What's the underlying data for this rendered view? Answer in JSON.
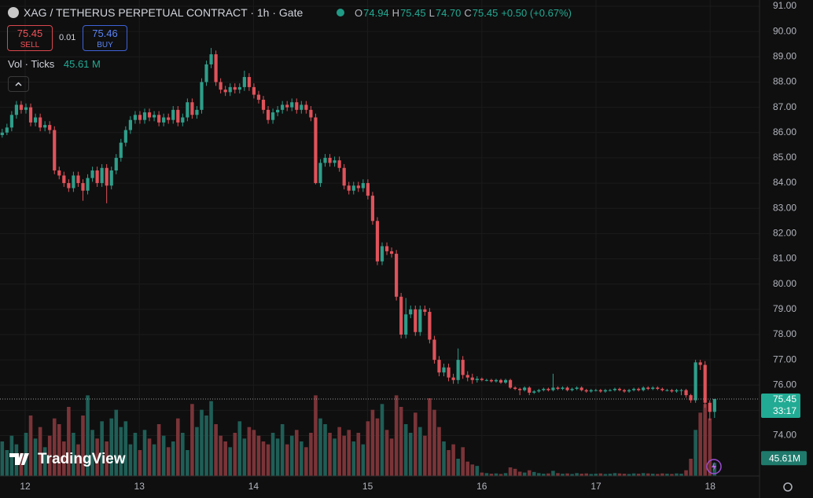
{
  "chart_data": {
    "type": "candlestick",
    "title": "XAG / TETHERUS PERPETUAL CONTRACT · 1h · Gate",
    "legend_keys": [
      "O",
      "H",
      "L",
      "C"
    ],
    "legend_values": [
      74.94,
      75.45,
      74.7,
      75.45
    ],
    "legend_value_labels": [
      "74.94",
      "75.45",
      "74.70",
      "75.45"
    ],
    "change": "+0.50 (+0.67%)",
    "sell": {
      "price": 75.45,
      "label": "SELL"
    },
    "spread": 0.01,
    "buy": {
      "price": 75.46,
      "label": "BUY"
    },
    "volume_title": "Vol · Ticks",
    "volume_legend": "45.61 M",
    "volume_tag": "45.61M",
    "countdown": "33:17",
    "watermark": "TradingView",
    "x_labels": [
      "12",
      "13",
      "14",
      "15",
      "16",
      "17",
      "18"
    ],
    "ylim": [
      72.4,
      91.25
    ],
    "yticks": [
      {
        "value": 91,
        "label": "91.00"
      },
      {
        "value": 90,
        "label": "90.00"
      },
      {
        "value": 89,
        "label": "89.00"
      },
      {
        "value": 88,
        "label": "88.00"
      },
      {
        "value": 87,
        "label": "87.00"
      },
      {
        "value": 86,
        "label": "86.00"
      },
      {
        "value": 85,
        "label": "85.00"
      },
      {
        "value": 84,
        "label": "84.00"
      },
      {
        "value": 83,
        "label": "83.00"
      },
      {
        "value": 82,
        "label": "82.00"
      },
      {
        "value": 81,
        "label": "81.00"
      },
      {
        "value": 80,
        "label": "80.00"
      },
      {
        "value": 79,
        "label": "79.00"
      },
      {
        "value": 78,
        "label": "78.00"
      },
      {
        "value": 77,
        "label": "77.00"
      },
      {
        "value": 76,
        "label": "76.00"
      },
      {
        "value": 75,
        "label": "75.00"
      },
      {
        "value": 74,
        "label": "74.00"
      }
    ],
    "volume_lim": [
      0,
      300
    ],
    "up_color": "#2e9e8a",
    "down_color": "#e0525a",
    "up_volume_color": "#1f5e56",
    "down_volume_color": "#7a3438",
    "grid": true,
    "candles": [
      [
        85.9,
        86.15,
        85.8,
        86.0
      ],
      [
        86.0,
        86.35,
        85.9,
        86.2
      ],
      [
        86.2,
        86.85,
        86.05,
        86.7
      ],
      [
        86.7,
        87.25,
        86.55,
        87.1
      ],
      [
        87.1,
        87.25,
        86.75,
        86.9
      ],
      [
        86.9,
        87.15,
        86.75,
        87.0
      ],
      [
        87.0,
        87.15,
        86.25,
        86.4
      ],
      [
        86.4,
        86.75,
        86.25,
        86.6
      ],
      [
        86.6,
        86.75,
        86.05,
        86.2
      ],
      [
        86.2,
        86.45,
        86.05,
        86.3
      ],
      [
        86.3,
        86.45,
        85.95,
        86.1
      ],
      [
        86.1,
        86.25,
        84.35,
        84.5
      ],
      [
        84.5,
        84.65,
        84.15,
        84.3
      ],
      [
        84.3,
        84.45,
        83.85,
        84.0
      ],
      [
        84.0,
        84.15,
        83.65,
        83.8
      ],
      [
        83.8,
        84.45,
        83.65,
        84.3
      ],
      [
        84.3,
        84.45,
        83.85,
        84.0
      ],
      [
        84.0,
        84.15,
        83.3,
        83.7
      ],
      [
        83.7,
        84.35,
        83.55,
        84.2
      ],
      [
        84.2,
        84.65,
        84.05,
        84.5
      ],
      [
        84.5,
        84.65,
        83.85,
        84.0
      ],
      [
        84.0,
        84.75,
        83.85,
        84.6
      ],
      [
        84.6,
        84.75,
        83.2,
        83.9
      ],
      [
        83.9,
        84.65,
        83.75,
        84.5
      ],
      [
        84.5,
        85.15,
        84.35,
        85.0
      ],
      [
        85.0,
        85.75,
        84.85,
        85.6
      ],
      [
        85.6,
        86.25,
        85.45,
        86.1
      ],
      [
        86.1,
        86.65,
        85.95,
        86.5
      ],
      [
        86.5,
        86.85,
        86.35,
        86.7
      ],
      [
        86.7,
        86.85,
        86.35,
        86.5
      ],
      [
        86.5,
        86.95,
        86.35,
        86.8
      ],
      [
        86.8,
        86.95,
        86.45,
        86.6
      ],
      [
        86.6,
        86.85,
        86.45,
        86.7
      ],
      [
        86.7,
        86.85,
        86.25,
        86.4
      ],
      [
        86.4,
        86.75,
        86.25,
        86.6
      ],
      [
        86.6,
        86.75,
        86.35,
        86.5
      ],
      [
        86.5,
        87.05,
        86.35,
        86.9
      ],
      [
        86.9,
        87.05,
        86.25,
        86.4
      ],
      [
        86.4,
        86.75,
        86.25,
        86.6
      ],
      [
        86.6,
        87.35,
        86.45,
        87.2
      ],
      [
        87.2,
        87.35,
        86.55,
        86.7
      ],
      [
        86.7,
        87.05,
        86.55,
        86.9
      ],
      [
        86.9,
        88.15,
        86.75,
        88.0
      ],
      [
        88.0,
        88.85,
        87.85,
        88.7
      ],
      [
        88.7,
        89.35,
        88.55,
        89.1
      ],
      [
        89.1,
        89.25,
        87.85,
        88.0
      ],
      [
        88.0,
        88.15,
        87.55,
        87.7
      ],
      [
        87.7,
        87.85,
        87.45,
        87.6
      ],
      [
        87.6,
        87.95,
        87.45,
        87.8
      ],
      [
        87.8,
        87.95,
        87.55,
        87.7
      ],
      [
        87.7,
        87.95,
        87.55,
        87.8
      ],
      [
        87.8,
        88.45,
        87.65,
        88.2
      ],
      [
        88.2,
        88.35,
        87.65,
        87.8
      ],
      [
        87.8,
        87.95,
        87.35,
        87.5
      ],
      [
        87.5,
        87.65,
        87.15,
        87.3
      ],
      [
        87.3,
        87.45,
        86.75,
        86.9
      ],
      [
        86.9,
        87.05,
        86.35,
        86.5
      ],
      [
        86.5,
        86.95,
        86.35,
        86.8
      ],
      [
        86.8,
        87.05,
        86.65,
        86.9
      ],
      [
        86.9,
        87.25,
        86.75,
        87.1
      ],
      [
        87.1,
        87.25,
        86.85,
        87.0
      ],
      [
        87.0,
        87.35,
        86.85,
        87.2
      ],
      [
        87.2,
        87.35,
        86.75,
        86.9
      ],
      [
        86.9,
        87.25,
        86.75,
        87.1
      ],
      [
        87.1,
        87.25,
        86.75,
        86.9
      ],
      [
        86.9,
        87.05,
        86.45,
        86.6
      ],
      [
        86.6,
        86.75,
        83.95,
        84.0
      ],
      [
        84.0,
        84.95,
        83.85,
        84.8
      ],
      [
        84.8,
        85.15,
        84.65,
        85.0
      ],
      [
        85.0,
        85.15,
        84.65,
        84.8
      ],
      [
        84.8,
        85.05,
        84.65,
        84.9
      ],
      [
        84.9,
        85.05,
        84.45,
        84.6
      ],
      [
        84.6,
        84.75,
        83.75,
        83.9
      ],
      [
        83.9,
        84.05,
        83.55,
        83.7
      ],
      [
        83.7,
        84.05,
        83.55,
        83.9
      ],
      [
        83.9,
        84.05,
        83.65,
        83.8
      ],
      [
        83.8,
        84.15,
        83.65,
        84.0
      ],
      [
        84.0,
        84.15,
        83.35,
        83.5
      ],
      [
        83.5,
        83.65,
        82.35,
        82.5
      ],
      [
        82.5,
        82.65,
        80.75,
        80.9
      ],
      [
        80.9,
        81.65,
        80.75,
        81.5
      ],
      [
        81.5,
        81.65,
        81.15,
        81.3
      ],
      [
        81.3,
        81.45,
        81.05,
        81.2
      ],
      [
        81.2,
        81.35,
        79.35,
        79.5
      ],
      [
        79.5,
        79.65,
        77.85,
        78.0
      ],
      [
        78.0,
        79.45,
        77.85,
        78.8
      ],
      [
        78.8,
        79.15,
        78.65,
        79.0
      ],
      [
        79.0,
        79.15,
        77.95,
        78.1
      ],
      [
        78.1,
        79.15,
        77.95,
        79.0
      ],
      [
        79.0,
        79.15,
        78.75,
        78.9
      ],
      [
        78.9,
        79.05,
        77.65,
        77.8
      ],
      [
        77.8,
        77.95,
        76.85,
        77.0
      ],
      [
        77.0,
        77.15,
        76.35,
        76.5
      ],
      [
        76.5,
        76.85,
        76.35,
        76.7
      ],
      [
        76.7,
        76.85,
        76.15,
        76.3
      ],
      [
        76.3,
        76.45,
        76.05,
        76.2
      ],
      [
        76.2,
        77.45,
        76.05,
        77.0
      ],
      [
        77.0,
        77.15,
        76.25,
        76.4
      ],
      [
        76.4,
        76.55,
        76.15,
        76.3
      ],
      [
        76.3,
        76.45,
        76.05,
        76.2
      ],
      [
        76.2,
        76.35,
        76.1,
        76.25
      ],
      [
        76.25,
        76.3,
        76.15,
        76.2
      ],
      [
        76.2,
        76.25,
        76.15,
        76.2
      ],
      [
        76.2,
        76.25,
        76.1,
        76.15
      ],
      [
        76.15,
        76.25,
        76.1,
        76.2
      ],
      [
        76.2,
        76.25,
        76.05,
        76.1
      ],
      [
        76.1,
        76.25,
        76.05,
        76.2
      ],
      [
        76.2,
        76.25,
        75.85,
        75.9
      ],
      [
        75.9,
        75.95,
        75.8,
        75.85
      ],
      [
        75.85,
        75.9,
        75.6,
        75.8
      ],
      [
        75.8,
        75.95,
        75.75,
        75.9
      ],
      [
        75.9,
        75.95,
        75.6,
        75.7
      ],
      [
        75.7,
        75.8,
        75.65,
        75.75
      ],
      [
        75.75,
        75.85,
        75.7,
        75.8
      ],
      [
        75.8,
        75.9,
        75.75,
        75.85
      ],
      [
        75.85,
        75.9,
        75.75,
        75.8
      ],
      [
        75.8,
        76.45,
        75.75,
        75.9
      ],
      [
        75.9,
        75.95,
        75.8,
        75.85
      ],
      [
        75.85,
        75.95,
        75.8,
        75.9
      ],
      [
        75.9,
        75.95,
        75.75,
        75.8
      ],
      [
        75.8,
        75.9,
        75.75,
        75.85
      ],
      [
        75.85,
        75.95,
        75.8,
        75.9
      ],
      [
        75.9,
        75.95,
        75.75,
        75.8
      ],
      [
        75.8,
        75.85,
        75.7,
        75.75
      ],
      [
        75.75,
        75.85,
        75.7,
        75.8
      ],
      [
        75.8,
        75.85,
        75.75,
        75.8
      ],
      [
        75.8,
        75.85,
        75.7,
        75.75
      ],
      [
        75.75,
        75.85,
        75.7,
        75.8
      ],
      [
        75.8,
        75.85,
        75.75,
        75.8
      ],
      [
        75.8,
        75.9,
        75.75,
        75.85
      ],
      [
        75.85,
        75.9,
        75.75,
        75.8
      ],
      [
        75.8,
        75.85,
        75.7,
        75.75
      ],
      [
        75.75,
        75.85,
        75.7,
        75.8
      ],
      [
        75.8,
        75.9,
        75.75,
        75.85
      ],
      [
        75.85,
        75.9,
        75.75,
        75.8
      ],
      [
        75.8,
        75.95,
        75.75,
        75.9
      ],
      [
        75.9,
        75.95,
        75.8,
        75.85
      ],
      [
        75.85,
        75.95,
        75.8,
        75.9
      ],
      [
        75.9,
        75.95,
        75.8,
        75.85
      ],
      [
        75.85,
        75.9,
        75.75,
        75.8
      ],
      [
        75.8,
        75.85,
        75.75,
        75.8
      ],
      [
        75.8,
        75.85,
        75.7,
        75.75
      ],
      [
        75.75,
        75.85,
        75.7,
        75.8
      ],
      [
        75.8,
        75.85,
        75.6,
        75.8
      ],
      [
        75.8,
        75.85,
        75.5,
        75.6
      ],
      [
        75.6,
        75.65,
        75.3,
        75.4
      ],
      [
        75.4,
        77.0,
        75.3,
        76.9
      ],
      [
        76.9,
        77.0,
        76.6,
        76.8
      ],
      [
        76.8,
        76.95,
        75.1,
        75.3
      ],
      [
        75.3,
        75.4,
        74.6,
        74.94
      ],
      [
        74.94,
        75.45,
        74.7,
        75.45
      ]
    ],
    "volume": [
      120,
      90,
      140,
      110,
      80,
      150,
      210,
      130,
      170,
      100,
      140,
      200,
      180,
      120,
      240,
      150,
      110,
      210,
      280,
      160,
      130,
      190,
      120,
      200,
      230,
      170,
      190,
      110,
      150,
      90,
      160,
      130,
      110,
      180,
      140,
      100,
      120,
      200,
      150,
      90,
      250,
      170,
      230,
      210,
      260,
      180,
      140,
      120,
      100,
      150,
      190,
      130,
      170,
      160,
      140,
      120,
      110,
      150,
      130,
      180,
      110,
      140,
      160,
      120,
      100,
      150,
      280,
      200,
      180,
      150,
      130,
      170,
      140,
      160,
      120,
      150,
      110,
      190,
      230,
      200,
      250,
      160,
      130,
      280,
      240,
      180,
      150,
      220,
      170,
      140,
      270,
      230,
      170,
      120,
      90,
      110,
      60,
      100,
      50,
      40,
      35,
      12,
      10,
      8,
      9,
      7,
      10,
      30,
      25,
      15,
      12,
      20,
      14,
      10,
      8,
      9,
      18,
      10,
      8,
      9,
      7,
      10,
      8,
      9,
      7,
      8,
      9,
      7,
      8,
      10,
      9,
      8,
      7,
      9,
      8,
      10,
      9,
      8,
      7,
      9,
      8,
      7,
      9,
      8,
      20,
      60,
      160,
      220,
      250,
      200,
      45.61
    ]
  }
}
